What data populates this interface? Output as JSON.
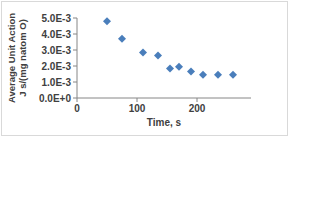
{
  "chart_data": {
    "type": "scatter",
    "x_label": "Time, s",
    "y_label": [
      "Average Unit Action",
      "J s/(mg natom O)"
    ],
    "x": [
      50,
      75,
      110,
      135,
      155,
      170,
      190,
      210,
      235,
      260
    ],
    "series": [
      {
        "name": "Average Unit Action",
        "color": "#4a7ebb",
        "marker": "diamond",
        "values": [
          0.0048,
          0.0037,
          0.00285,
          0.00265,
          0.00185,
          0.00195,
          0.00165,
          0.00145,
          0.00145,
          0.00145
        ]
      }
    ],
    "xlim": [
      0,
      290
    ],
    "xticks": [
      0,
      100,
      200
    ],
    "ylim": [
      0,
      0.005
    ],
    "yticks": [
      {
        "value": 0,
        "label": "0.0E+0"
      },
      {
        "value": 0.001,
        "label": "1.0E-3"
      },
      {
        "value": 0.002,
        "label": "2.0E-3"
      },
      {
        "value": 0.003,
        "label": "3.0E-3"
      },
      {
        "value": 0.004,
        "label": "4.0E-3"
      },
      {
        "value": 0.005,
        "label": "5.0E-3"
      }
    ],
    "grid": false
  }
}
